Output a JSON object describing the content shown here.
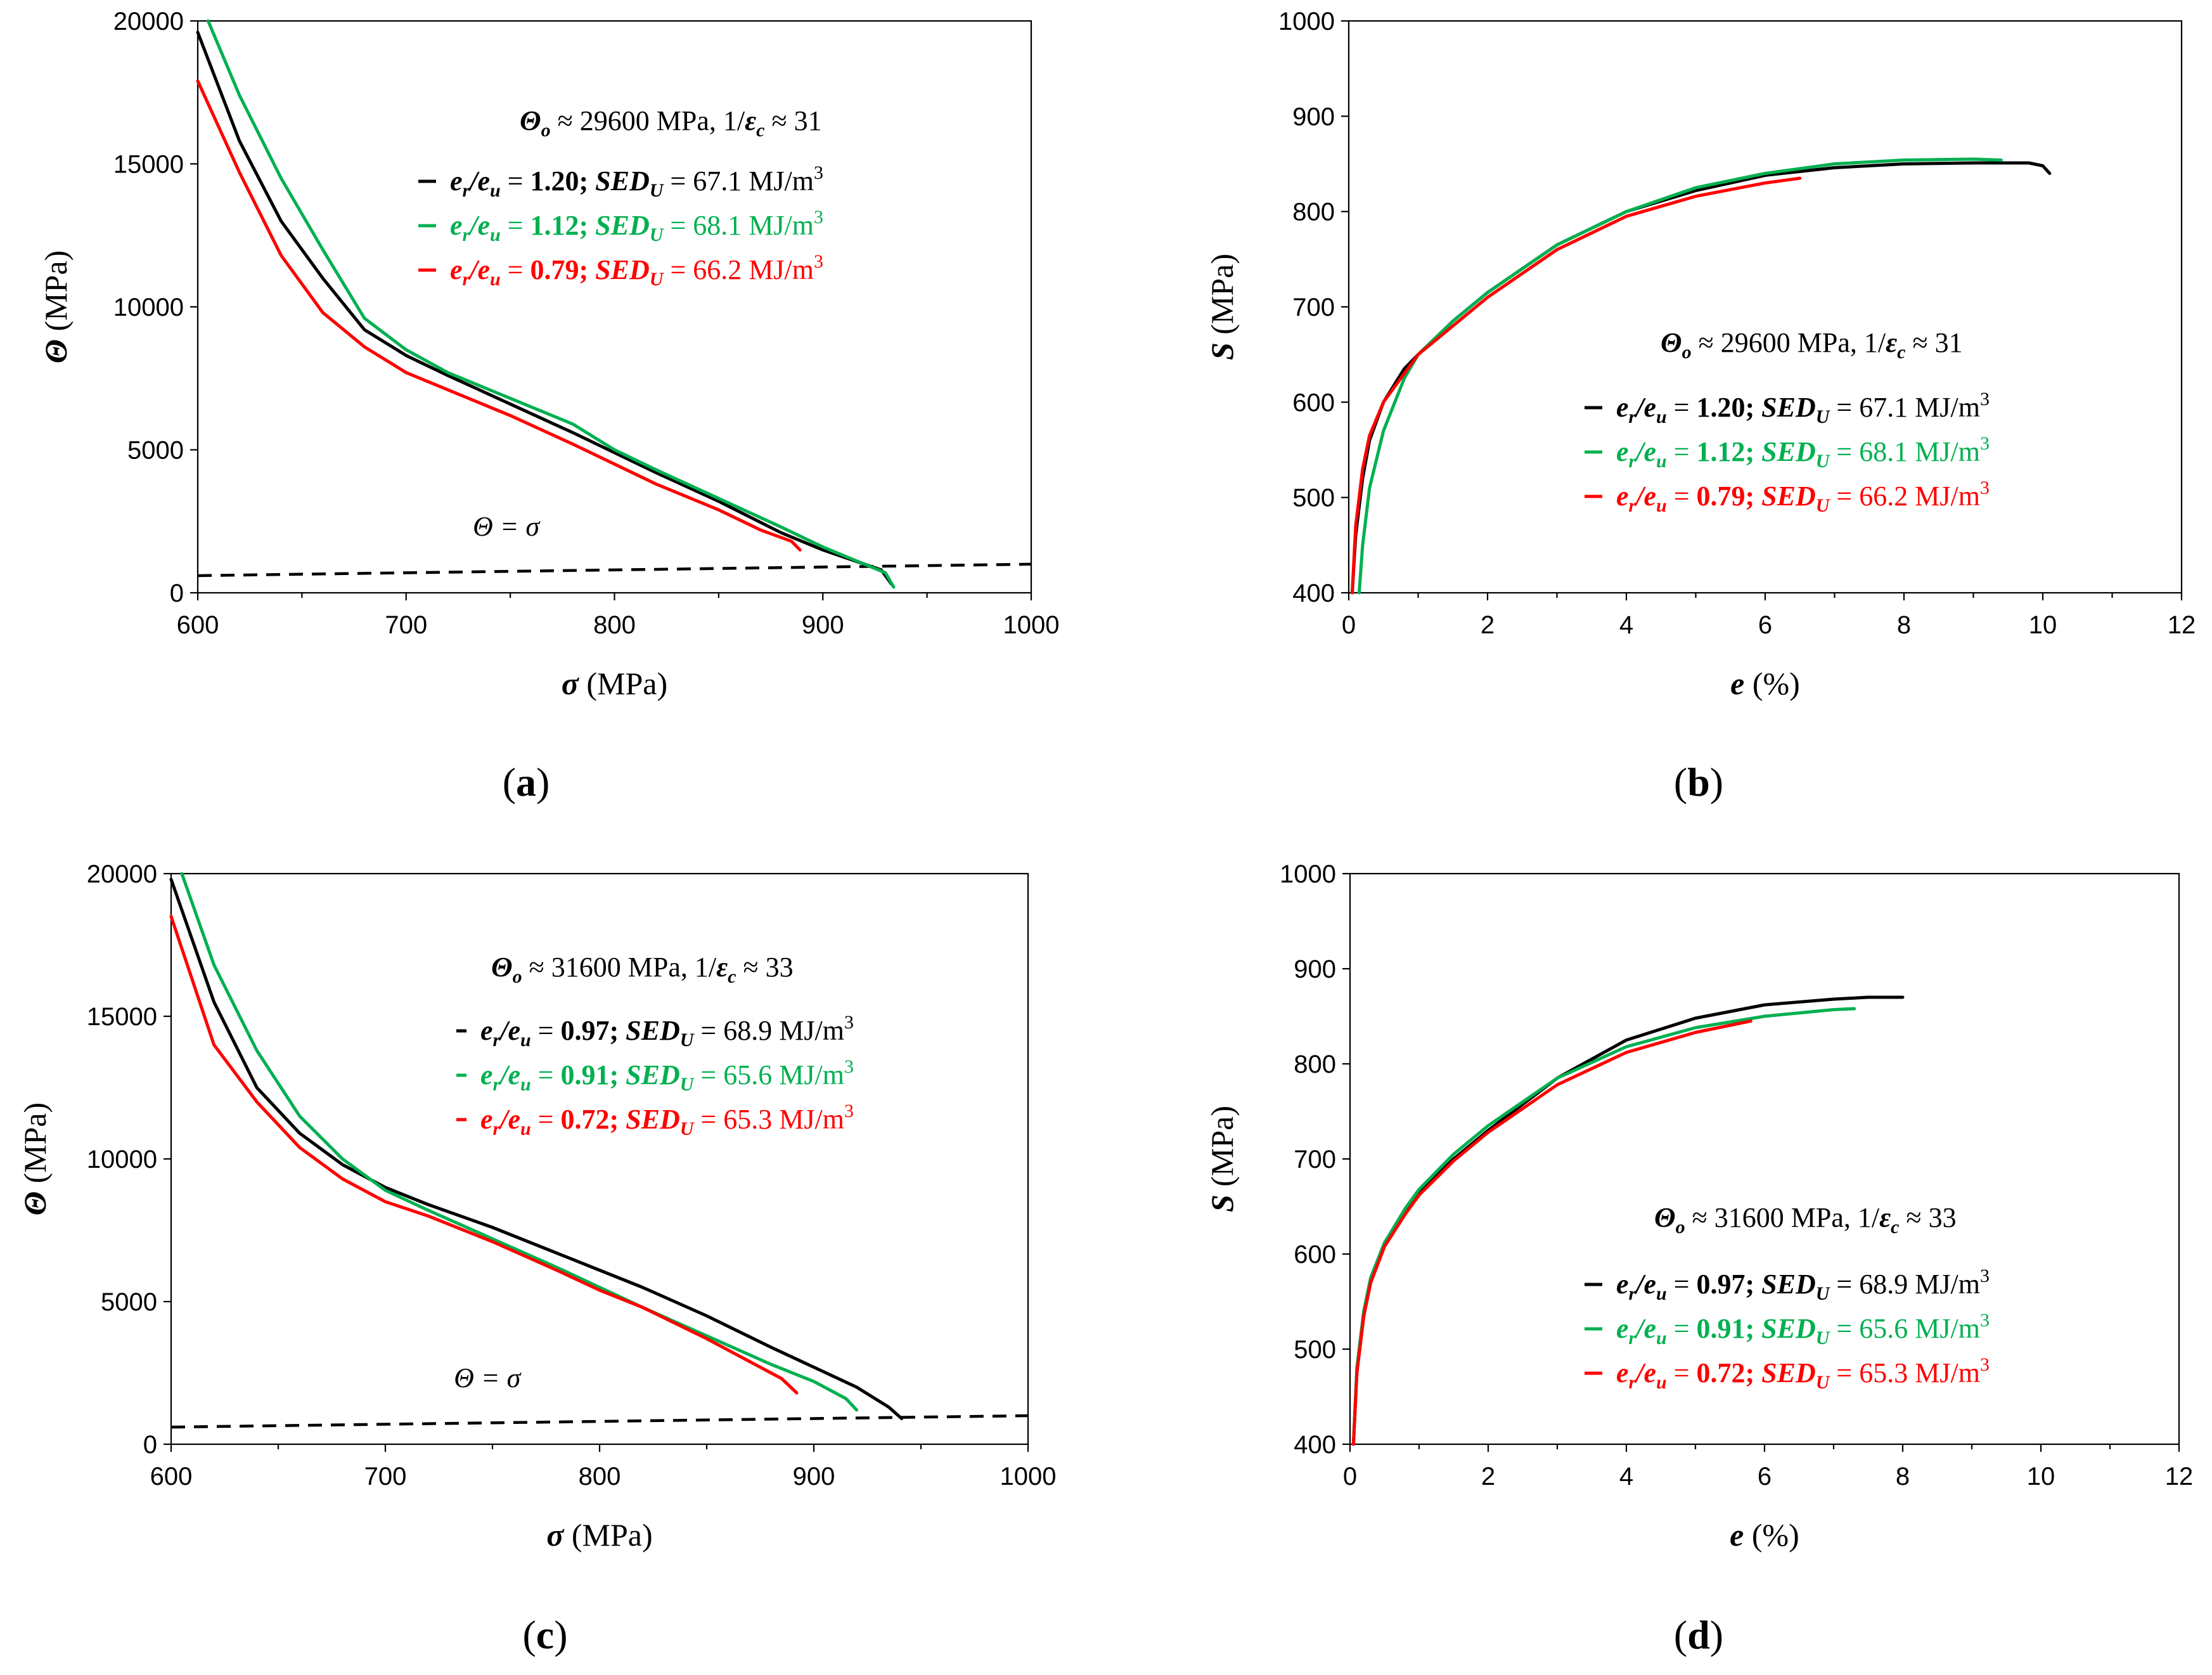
{
  "colors": {
    "black": "#000000",
    "green": "#00b050",
    "red": "#ff0000"
  },
  "chart_data": [
    {
      "id": "a",
      "type": "line",
      "panel_label": "a",
      "xlabel_sym": "σ",
      "xlabel_unit": " (MPa)",
      "ylabel_sym": "Θ",
      "ylabel_unit": " (MPa)",
      "xlim": [
        600,
        1000
      ],
      "ylim": [
        0,
        20000
      ],
      "xticks": [
        600,
        700,
        800,
        900,
        1000
      ],
      "yticks": [
        0,
        5000,
        10000,
        15000,
        20000
      ],
      "params": {
        "theta_sym": "Θ",
        "theta_sub": "o",
        "theta_val": " ≈ 29600 MPa,  1/",
        "eps_sym": "ε",
        "eps_sub": "c",
        "eps_val": " ≈ 31"
      },
      "legend": [
        {
          "ratio": "1.20",
          "sed": "67.1",
          "color": "#000000"
        },
        {
          "ratio": "1.12",
          "sed": "68.1",
          "color": "#00b050"
        },
        {
          "ratio": "0.79",
          "sed": "66.2",
          "color": "#ff0000"
        }
      ],
      "ref_label": "Θ =  σ",
      "ref_line": {
        "x": [
          600,
          1000
        ],
        "y": [
          600,
          1000
        ]
      },
      "series": [
        {
          "name": "1.20",
          "color": "#000000",
          "x": [
            600,
            620,
            640,
            660,
            680,
            700,
            720,
            750,
            780,
            800,
            820,
            850,
            880,
            900,
            920,
            928,
            933
          ],
          "y": [
            19600,
            15800,
            13000,
            11000,
            9200,
            8300,
            7600,
            6600,
            5600,
            4900,
            4200,
            3200,
            2100,
            1500,
            1000,
            800,
            300
          ]
        },
        {
          "name": "1.12",
          "color": "#00b050",
          "x": [
            605,
            620,
            640,
            660,
            680,
            700,
            720,
            750,
            780,
            800,
            820,
            850,
            880,
            900,
            920,
            930,
            934
          ],
          "y": [
            20000,
            17400,
            14500,
            12000,
            9600,
            8500,
            7700,
            6800,
            5900,
            5000,
            4300,
            3300,
            2300,
            1600,
            1000,
            700,
            200
          ]
        },
        {
          "name": "0.79",
          "color": "#ff0000",
          "x": [
            600,
            620,
            640,
            660,
            680,
            700,
            720,
            750,
            780,
            800,
            820,
            850,
            870,
            885,
            889
          ],
          "y": [
            17900,
            14700,
            11800,
            9800,
            8600,
            7700,
            7100,
            6200,
            5200,
            4500,
            3800,
            2900,
            2200,
            1800,
            1500
          ]
        }
      ]
    },
    {
      "id": "b",
      "type": "line",
      "panel_label": "b",
      "xlabel_sym": "e",
      "xlabel_unit": "  (%)",
      "ylabel_sym": "S",
      "ylabel_unit": " (MPa)",
      "xlim": [
        0,
        12
      ],
      "ylim": [
        400,
        1000
      ],
      "xticks": [
        0,
        2,
        4,
        6,
        8,
        10,
        12
      ],
      "yticks": [
        400,
        500,
        600,
        700,
        800,
        900,
        1000
      ],
      "params": {
        "theta_sym": "Θ",
        "theta_sub": "o",
        "theta_val": " ≈ 29600 MPa,  1/",
        "eps_sym": "ε",
        "eps_sub": "c",
        "eps_val": " ≈ 31"
      },
      "legend": [
        {
          "ratio": "1.20",
          "sed": "67.1",
          "color": "#000000"
        },
        {
          "ratio": "1.12",
          "sed": "68.1",
          "color": "#00b050"
        },
        {
          "ratio": "0.79",
          "sed": "66.2",
          "color": "#ff0000"
        }
      ],
      "series": [
        {
          "name": "1.20",
          "color": "#000000",
          "x": [
            0.05,
            0.1,
            0.2,
            0.3,
            0.5,
            0.8,
            1,
            1.5,
            2,
            3,
            4,
            5,
            6,
            7,
            8,
            9,
            9.8,
            10,
            10.1
          ],
          "y": [
            400,
            460,
            520,
            560,
            600,
            635,
            650,
            685,
            715,
            765,
            800,
            822,
            838,
            846,
            850,
            851,
            851,
            848,
            840
          ]
        },
        {
          "name": "1.12",
          "color": "#00b050",
          "x": [
            0.15,
            0.2,
            0.3,
            0.5,
            0.8,
            1,
            1.5,
            2,
            3,
            4,
            5,
            6,
            7,
            8,
            9,
            9.4
          ],
          "y": [
            400,
            450,
            510,
            570,
            625,
            650,
            685,
            715,
            765,
            800,
            825,
            840,
            850,
            854,
            855,
            854
          ]
        },
        {
          "name": "0.79",
          "color": "#ff0000",
          "x": [
            0.05,
            0.1,
            0.2,
            0.3,
            0.5,
            0.8,
            1,
            1.5,
            2,
            3,
            4,
            5,
            6,
            6.5
          ],
          "y": [
            400,
            470,
            530,
            565,
            600,
            630,
            650,
            680,
            710,
            760,
            795,
            816,
            830,
            835
          ]
        }
      ]
    },
    {
      "id": "c",
      "type": "line",
      "panel_label": "c",
      "xlabel_sym": "σ",
      "xlabel_unit": " (MPa)",
      "ylabel_sym": "Θ",
      "ylabel_unit": " (MPa)",
      "xlim": [
        600,
        1000
      ],
      "ylim": [
        0,
        20000
      ],
      "xticks": [
        600,
        700,
        800,
        900,
        1000
      ],
      "yticks": [
        0,
        5000,
        10000,
        15000,
        20000
      ],
      "params": {
        "theta_sym": "Θ",
        "theta_sub": "o",
        "theta_val": " ≈ 31600 MPa,  1/",
        "eps_sym": "ε",
        "eps_sub": "c",
        "eps_val": " ≈ 33"
      },
      "legend": [
        {
          "ratio": "0.97",
          "sed": "68.9",
          "color": "#000000"
        },
        {
          "ratio": "0.91",
          "sed": "65.6",
          "color": "#00b050"
        },
        {
          "ratio": "0.72",
          "sed": "65.3",
          "color": "#ff0000"
        }
      ],
      "ref_label": "Θ =  σ",
      "ref_line": {
        "x": [
          600,
          1000
        ],
        "y": [
          600,
          1000
        ]
      },
      "series": [
        {
          "name": "0.97",
          "color": "#000000",
          "x": [
            600,
            620,
            640,
            660,
            680,
            700,
            720,
            750,
            780,
            800,
            820,
            850,
            880,
            900,
            920,
            935,
            941
          ],
          "y": [
            19800,
            15500,
            12500,
            10900,
            9800,
            9000,
            8400,
            7600,
            6700,
            6100,
            5500,
            4500,
            3400,
            2700,
            2000,
            1300,
            900
          ]
        },
        {
          "name": "0.91",
          "color": "#00b050",
          "x": [
            605,
            620,
            640,
            660,
            680,
            700,
            720,
            750,
            780,
            800,
            820,
            850,
            880,
            900,
            915,
            920
          ],
          "y": [
            20000,
            16800,
            13800,
            11500,
            10000,
            8900,
            8200,
            7200,
            6200,
            5500,
            4800,
            3800,
            2800,
            2200,
            1600,
            1200
          ]
        },
        {
          "name": "0.72",
          "color": "#ff0000",
          "x": [
            600,
            620,
            640,
            660,
            680,
            700,
            720,
            750,
            780,
            800,
            820,
            850,
            870,
            885,
            892
          ],
          "y": [
            18500,
            14000,
            12000,
            10400,
            9300,
            8500,
            8000,
            7100,
            6100,
            5400,
            4800,
            3700,
            2900,
            2300,
            1800
          ]
        }
      ]
    },
    {
      "id": "d",
      "type": "line",
      "panel_label": "d",
      "xlabel_sym": "e",
      "xlabel_unit": "  (%)",
      "ylabel_sym": "S",
      "ylabel_unit": " (MPa)",
      "xlim": [
        0,
        12
      ],
      "ylim": [
        400,
        1000
      ],
      "xticks": [
        0,
        2,
        4,
        6,
        8,
        10,
        12
      ],
      "yticks": [
        400,
        500,
        600,
        700,
        800,
        900,
        1000
      ],
      "params": {
        "theta_sym": "Θ",
        "theta_sub": "o",
        "theta_val": " ≈ 31600 MPa,  1/",
        "eps_sym": "ε",
        "eps_sub": "c",
        "eps_val": " ≈ 33"
      },
      "legend": [
        {
          "ratio": "0.97",
          "sed": "68.9",
          "color": "#000000"
        },
        {
          "ratio": "0.91",
          "sed": "65.6",
          "color": "#00b050"
        },
        {
          "ratio": "0.72",
          "sed": "65.3",
          "color": "#ff0000"
        }
      ],
      "series": [
        {
          "name": "0.97",
          "color": "#000000",
          "x": [
            0.05,
            0.1,
            0.2,
            0.3,
            0.5,
            0.8,
            1,
            1.5,
            2,
            3,
            4,
            5,
            6,
            7,
            7.5,
            8
          ],
          "y": [
            400,
            480,
            540,
            575,
            612,
            645,
            665,
            700,
            730,
            785,
            825,
            848,
            862,
            868,
            870,
            870
          ]
        },
        {
          "name": "0.91",
          "color": "#00b050",
          "x": [
            0.05,
            0.1,
            0.2,
            0.3,
            0.5,
            0.8,
            1,
            1.5,
            2,
            3,
            4,
            5,
            6,
            7,
            7.3
          ],
          "y": [
            400,
            480,
            540,
            575,
            612,
            648,
            668,
            705,
            735,
            785,
            818,
            838,
            850,
            857,
            858
          ]
        },
        {
          "name": "0.72",
          "color": "#ff0000",
          "x": [
            0.05,
            0.1,
            0.2,
            0.3,
            0.5,
            0.8,
            1,
            1.5,
            2,
            3,
            4,
            5,
            5.8
          ],
          "y": [
            400,
            475,
            535,
            570,
            608,
            642,
            662,
            698,
            728,
            778,
            812,
            833,
            845
          ]
        }
      ]
    }
  ]
}
